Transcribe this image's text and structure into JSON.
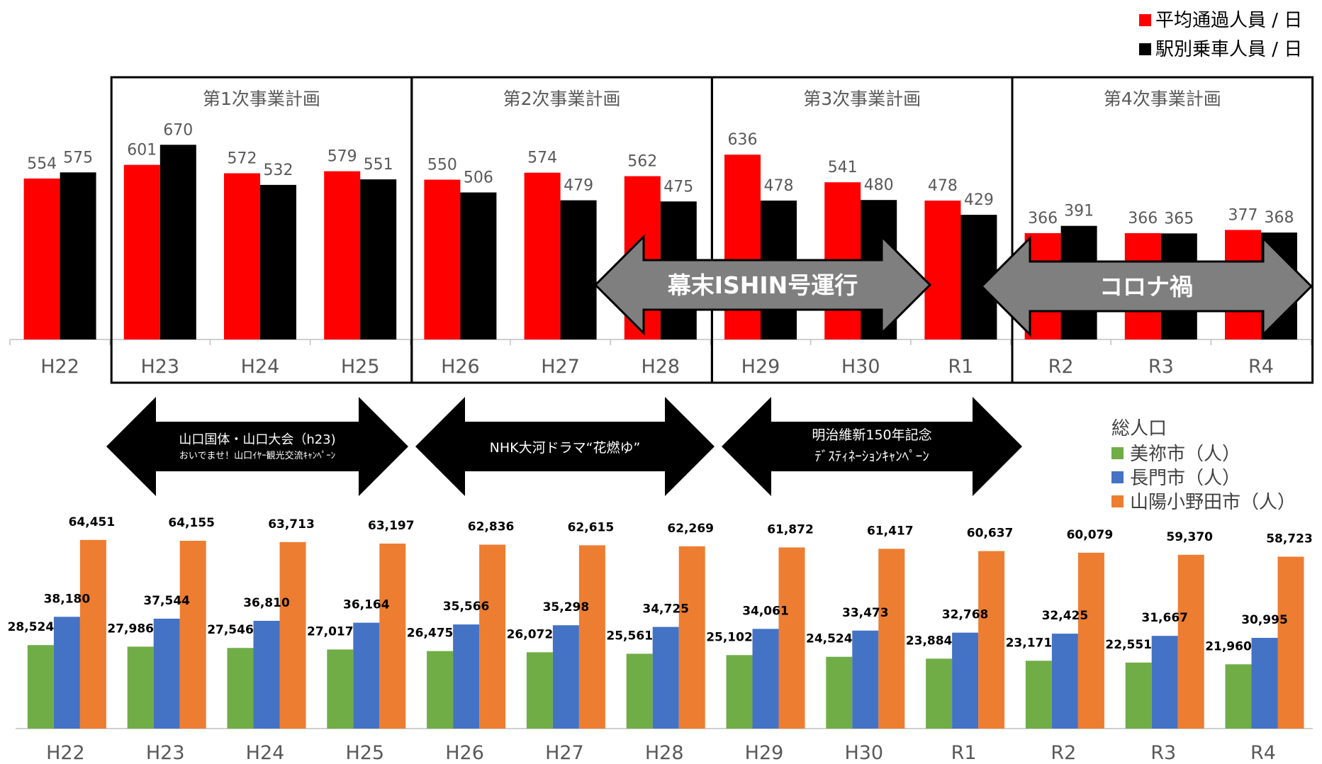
{
  "colors": {
    "red": "#ff0000",
    "black": "#000000",
    "green": "#70ad47",
    "blue": "#4472c4",
    "orange": "#ed7d31",
    "grey_arrow": "#7f7f7f"
  },
  "categories": [
    "H22",
    "H23",
    "H24",
    "H25",
    "H26",
    "H27",
    "H28",
    "H29",
    "H30",
    "R1",
    "R2",
    "R3",
    "R4"
  ],
  "periods": [
    {
      "label": "第1次事業計画",
      "from": 1,
      "to": 3
    },
    {
      "label": "第2次事業計画",
      "from": 4,
      "to": 6
    },
    {
      "label": "第3次事業計画",
      "from": 7,
      "to": 9
    },
    {
      "label": "第4次事業計画",
      "from": 10,
      "to": 12
    }
  ],
  "banners": [
    {
      "label": "幕末ISHIN号運行"
    },
    {
      "label": "コロナ禍"
    }
  ],
  "events": [
    {
      "lines": [
        "山口国体・山口大会（h23)",
        "おいでませ！山口ｲﾔｰ観光交流ｷｬﾝﾍﾟｰﾝ"
      ]
    },
    {
      "lines": [
        "NHK大河ドラマ“花燃ゆ”"
      ]
    },
    {
      "lines": [
        "明治維新150年記念",
        "ﾃﾞｽﾃｨﾈｰｼｮﾝｷｬﾝﾍﾟｰﾝ"
      ]
    }
  ],
  "chart_data": [
    {
      "type": "bar",
      "categories": [
        "H22",
        "H23",
        "H24",
        "H25",
        "H26",
        "H27",
        "H28",
        "H29",
        "H30",
        "R1",
        "R2",
        "R3",
        "R4"
      ],
      "series": [
        {
          "name": "平均通過人員 / 日",
          "color": "#ff0000",
          "values": [
            554,
            601,
            572,
            579,
            550,
            574,
            562,
            636,
            541,
            478,
            366,
            366,
            377
          ]
        },
        {
          "name": "駅別乗車人員 / 日",
          "color": "#000000",
          "values": [
            575,
            670,
            532,
            551,
            506,
            479,
            475,
            478,
            480,
            429,
            391,
            365,
            368
          ]
        }
      ],
      "ylim": [
        0,
        750
      ],
      "legend": "top-right"
    },
    {
      "type": "bar",
      "title": "総人口",
      "categories": [
        "H22",
        "H23",
        "H24",
        "H25",
        "H26",
        "H27",
        "H28",
        "H29",
        "H30",
        "R1",
        "R2",
        "R3",
        "R4"
      ],
      "series": [
        {
          "name": "美祢市（人）",
          "color": "#70ad47",
          "values": [
            28524,
            27986,
            27546,
            27017,
            26475,
            26072,
            25561,
            25102,
            24524,
            23884,
            23171,
            22551,
            21960
          ]
        },
        {
          "name": "長門市（人）",
          "color": "#4472c4",
          "values": [
            38180,
            37544,
            36810,
            36164,
            35566,
            35298,
            34725,
            34061,
            33473,
            32768,
            32425,
            31667,
            30995
          ]
        },
        {
          "name": "山陽小野田市（人）",
          "color": "#ed7d31",
          "values": [
            64451,
            64155,
            63713,
            63197,
            62836,
            62615,
            62269,
            61872,
            61417,
            60637,
            60079,
            59370,
            58723
          ]
        }
      ],
      "ylim": [
        0,
        70000
      ],
      "legend": "right"
    }
  ]
}
